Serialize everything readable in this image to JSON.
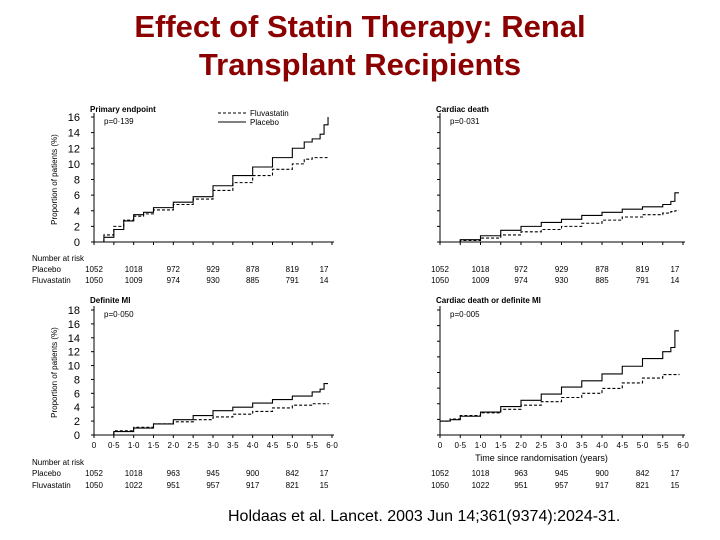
{
  "slide": {
    "title_line1": "Effect of Statin Therapy: Renal",
    "title_line2": "Transplant Recipients",
    "citation": "Holdaas et al. Lancet. 2003 Jun 14;361(9374):2024-31."
  },
  "colors": {
    "title": "#8b0000",
    "ink": "#000000"
  },
  "shared": {
    "risk_label": "Number at risk",
    "xlabel": "Time since randomisation (years)",
    "x_ticks": [
      "0",
      "0·5",
      "1·0",
      "1·5",
      "2·0",
      "2·5",
      "3·0",
      "3·5",
      "4·0",
      "4·5",
      "5·0",
      "5·5",
      "6·0"
    ],
    "legend": [
      {
        "name": "Fluvastatin",
        "dash": true
      },
      {
        "name": "Placebo",
        "dash": false
      }
    ]
  },
  "chart_data": [
    {
      "type": "line",
      "title": "Primary endpoint",
      "annotation": "p=0·139",
      "ylabel": "Proportion of patients (%)",
      "ylim": [
        0,
        16
      ],
      "y_ticks": [
        "0",
        "2",
        "4",
        "6",
        "8",
        "10",
        "12",
        "14",
        "16"
      ],
      "xlim": [
        0,
        6
      ],
      "series": [
        {
          "name": "Placebo",
          "dash": false,
          "x": [
            0,
            0.25,
            0.5,
            0.75,
            1.0,
            1.25,
            1.5,
            2.0,
            2.5,
            3.0,
            3.5,
            4.0,
            4.5,
            5.0,
            5.3,
            5.5,
            5.7,
            5.8,
            5.9
          ],
          "y": [
            0,
            0.6,
            1.6,
            2.7,
            3.5,
            3.8,
            4.4,
            5.1,
            5.8,
            7.2,
            8.5,
            9.6,
            10.8,
            12.0,
            12.8,
            13.2,
            13.8,
            15.0,
            16.0
          ]
        },
        {
          "name": "Fluvastatin",
          "dash": true,
          "x": [
            0,
            0.25,
            0.5,
            0.75,
            1.0,
            1.25,
            1.5,
            2.0,
            2.5,
            3.0,
            3.5,
            4.0,
            4.5,
            5.0,
            5.3,
            5.5,
            5.9
          ],
          "y": [
            0,
            0.9,
            2.0,
            2.8,
            3.3,
            3.6,
            4.1,
            4.8,
            5.5,
            6.6,
            7.6,
            8.5,
            9.3,
            10.0,
            10.6,
            10.8,
            10.8
          ]
        }
      ],
      "risk_rows": [
        {
          "label": "Placebo",
          "values": [
            "1052",
            "1018",
            "972",
            "929",
            "878",
            "819",
            "17"
          ]
        },
        {
          "label": "Fluvastatin",
          "values": [
            "1050",
            "1009",
            "974",
            "930",
            "885",
            "791",
            "14"
          ]
        }
      ]
    },
    {
      "type": "line",
      "title": "Cardiac death",
      "annotation": "p=0·031",
      "ylim": [
        0,
        16
      ],
      "xlim": [
        0,
        6
      ],
      "series": [
        {
          "name": "Placebo",
          "dash": false,
          "x": [
            0,
            0.5,
            1.0,
            1.5,
            2.0,
            2.5,
            3.0,
            3.5,
            4.0,
            4.5,
            5.0,
            5.5,
            5.7,
            5.8,
            5.9
          ],
          "y": [
            0,
            0.3,
            0.8,
            1.5,
            2.0,
            2.5,
            2.9,
            3.4,
            3.8,
            4.2,
            4.5,
            4.8,
            5.2,
            6.3,
            6.3
          ]
        },
        {
          "name": "Fluvastatin",
          "dash": true,
          "x": [
            0,
            0.5,
            1.0,
            1.5,
            2.0,
            2.5,
            3.0,
            3.5,
            4.0,
            4.5,
            5.0,
            5.5,
            5.7,
            5.8,
            5.9
          ],
          "y": [
            0,
            0.2,
            0.5,
            0.9,
            1.3,
            1.6,
            2.0,
            2.4,
            2.8,
            3.2,
            3.5,
            3.7,
            3.9,
            4.0,
            4.0
          ]
        }
      ],
      "risk_rows": [
        {
          "label": "Placebo",
          "values": [
            "1052",
            "1018",
            "972",
            "929",
            "878",
            "819",
            "17"
          ]
        },
        {
          "label": "Fluvastatin",
          "values": [
            "1050",
            "1009",
            "974",
            "930",
            "885",
            "791",
            "14"
          ]
        }
      ]
    },
    {
      "type": "line",
      "title": "Definite MI",
      "annotation": "p=0·050",
      "ylabel": "Proportion of patients (%)",
      "ylim": [
        0,
        18
      ],
      "y_ticks": [
        "0",
        "2",
        "4",
        "6",
        "8",
        "10",
        "12",
        "14",
        "16",
        "18"
      ],
      "xlim": [
        0,
        6
      ],
      "series": [
        {
          "name": "Placebo",
          "dash": false,
          "x": [
            0,
            0.5,
            1.0,
            1.5,
            2.0,
            2.5,
            3.0,
            3.5,
            4.0,
            4.5,
            5.0,
            5.5,
            5.7,
            5.8,
            5.9
          ],
          "y": [
            0,
            0.5,
            1.0,
            1.6,
            2.2,
            2.8,
            3.5,
            4.0,
            4.6,
            5.1,
            5.6,
            6.2,
            6.6,
            7.4,
            7.4
          ]
        },
        {
          "name": "Fluvastatin",
          "dash": true,
          "x": [
            0,
            0.5,
            1.0,
            1.5,
            2.0,
            2.5,
            3.0,
            3.5,
            4.0,
            4.5,
            5.0,
            5.5,
            5.9
          ],
          "y": [
            0,
            0.6,
            1.1,
            1.6,
            1.9,
            2.2,
            2.6,
            3.0,
            3.4,
            3.9,
            4.3,
            4.5,
            4.6
          ]
        }
      ],
      "risk_rows": [
        {
          "label": "Placebo",
          "values": [
            "1052",
            "1018",
            "963",
            "945",
            "900",
            "842",
            "17"
          ]
        },
        {
          "label": "Fluvastatin",
          "values": [
            "1050",
            "1022",
            "951",
            "957",
            "917",
            "821",
            "15"
          ]
        }
      ]
    },
    {
      "type": "line",
      "title": "Cardiac death or definite MI",
      "annotation": "p=0·005",
      "xlabel": "Time since randomisation (years)",
      "ylim": [
        0,
        18
      ],
      "xlim": [
        0,
        6
      ],
      "series": [
        {
          "name": "Placebo",
          "dash": false,
          "x": [
            0,
            0.25,
            0.5,
            1.0,
            1.5,
            2.0,
            2.5,
            3.0,
            3.5,
            4.0,
            4.5,
            5.0,
            5.5,
            5.7,
            5.8,
            5.9
          ],
          "y": [
            2.0,
            2.2,
            2.7,
            3.3,
            4.1,
            5.0,
            5.9,
            6.9,
            7.8,
            8.8,
            9.9,
            11.0,
            12.0,
            12.6,
            15.0,
            15.0
          ]
        },
        {
          "name": "Fluvastatin",
          "dash": true,
          "x": [
            0,
            0.25,
            0.5,
            1.0,
            1.5,
            2.0,
            2.5,
            3.0,
            3.5,
            4.0,
            4.5,
            5.0,
            5.5,
            5.9
          ],
          "y": [
            2.0,
            2.3,
            2.8,
            3.2,
            3.7,
            4.3,
            4.8,
            5.4,
            6.0,
            6.7,
            7.5,
            8.2,
            8.7,
            8.8
          ]
        }
      ],
      "risk_rows": [
        {
          "label": "Placebo",
          "values": [
            "1052",
            "1018",
            "963",
            "945",
            "900",
            "842",
            "17"
          ]
        },
        {
          "label": "Fluvastatin",
          "values": [
            "1050",
            "1022",
            "951",
            "957",
            "917",
            "821",
            "15"
          ]
        }
      ]
    }
  ]
}
